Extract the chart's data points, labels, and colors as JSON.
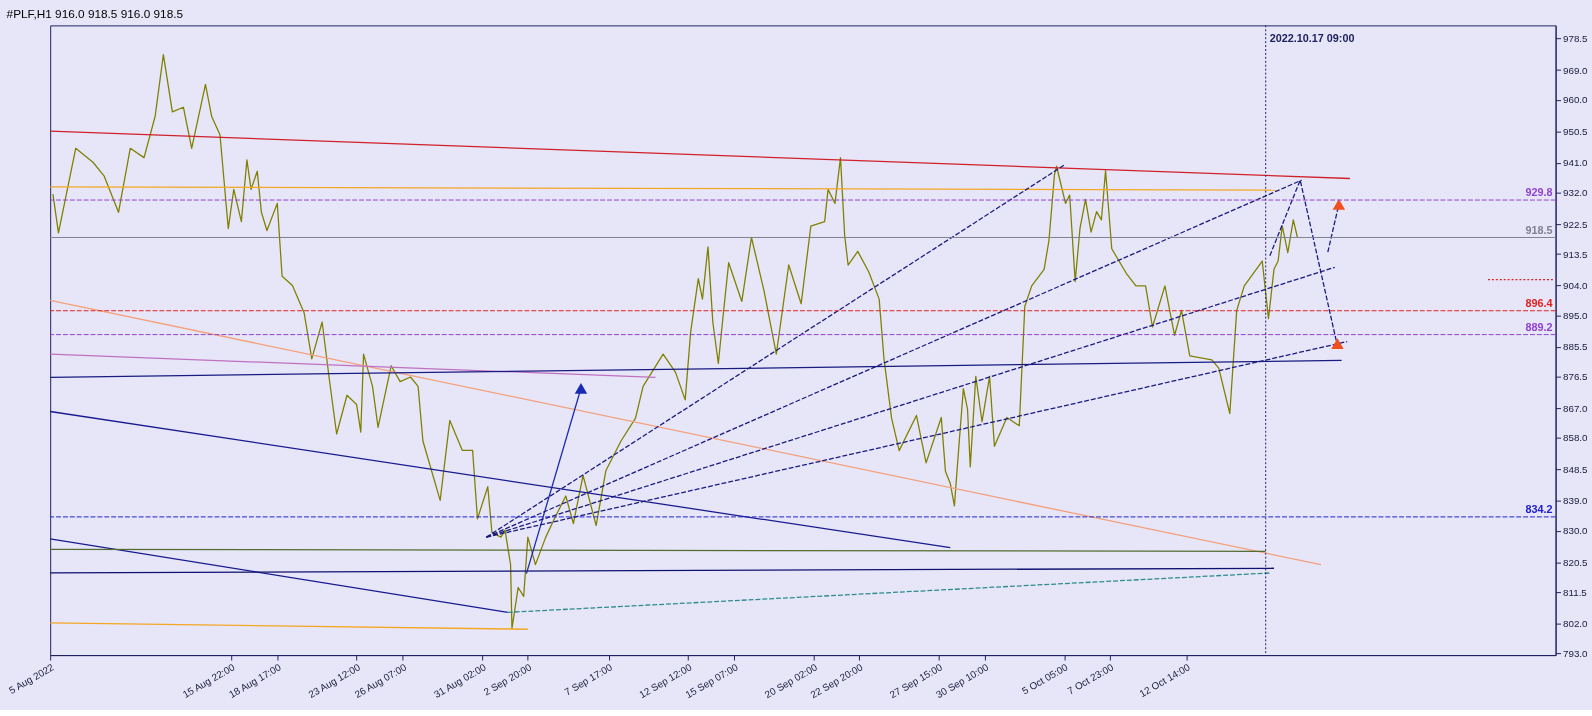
{
  "chart_data": {
    "type": "line",
    "title": "#PLF,H1  916.0 918.5 916.0 918.5",
    "xlim": [
      "2022-08-05T00:00",
      "2022-11-03T21:00"
    ],
    "ylim": [
      792.5,
      982.5
    ],
    "xticks": [
      {
        "value": "2022-08-05T00:00",
        "label": "5 Aug 2022"
      },
      {
        "value": "2022-08-15T22:00",
        "label": "15 Aug 22:00"
      },
      {
        "value": "2022-08-18T17:00",
        "label": "18 Aug 17:00"
      },
      {
        "value": "2022-08-23T12:00",
        "label": "23 Aug 12:00"
      },
      {
        "value": "2022-08-26T07:00",
        "label": "26 Aug 07:00"
      },
      {
        "value": "2022-08-31T02:00",
        "label": "31 Aug 02:00"
      },
      {
        "value": "2022-09-02T20:00",
        "label": "2 Sep 20:00"
      },
      {
        "value": "2022-09-07T17:00",
        "label": "7 Sep 17:00"
      },
      {
        "value": "2022-09-12T12:00",
        "label": "12 Sep 12:00"
      },
      {
        "value": "2022-09-15T07:00",
        "label": "15 Sep 07:00"
      },
      {
        "value": "2022-09-20T02:00",
        "label": "20 Sep 02:00"
      },
      {
        "value": "2022-09-22T20:00",
        "label": "22 Sep 20:00"
      },
      {
        "value": "2022-09-27T15:00",
        "label": "27 Sep 15:00"
      },
      {
        "value": "2022-09-30T10:00",
        "label": "30 Sep 10:00"
      },
      {
        "value": "2022-10-05T05:00",
        "label": "5 Oct 05:00"
      },
      {
        "value": "2022-10-07T23:00",
        "label": "7 Oct 23:00"
      },
      {
        "value": "2022-10-12T14:00",
        "label": "12 Oct 14:00"
      }
    ],
    "yticks": [
      {
        "value": 978.5,
        "label": "978.5"
      },
      {
        "value": 969,
        "label": "969.0"
      },
      {
        "value": 960,
        "label": "960.0"
      },
      {
        "value": 950.5,
        "label": "950.5"
      },
      {
        "value": 941,
        "label": "941.0"
      },
      {
        "value": 932,
        "label": "932.0"
      },
      {
        "value": 922.5,
        "label": "922.5"
      },
      {
        "value": 913.5,
        "label": "913.5"
      },
      {
        "value": 904,
        "label": "904.0"
      },
      {
        "value": 895,
        "label": "895.0"
      },
      {
        "value": 885.5,
        "label": "885.5"
      },
      {
        "value": 876.5,
        "label": "876.5"
      },
      {
        "value": 867,
        "label": "867.0"
      },
      {
        "value": 858,
        "label": "858.0"
      },
      {
        "value": 848.5,
        "label": "848.5"
      },
      {
        "value": 839,
        "label": "839.0"
      },
      {
        "value": 830,
        "label": "830.0"
      },
      {
        "value": 820.5,
        "label": "820.5"
      },
      {
        "value": 811.5,
        "label": "811.5"
      },
      {
        "value": 802,
        "label": "802.0"
      },
      {
        "value": 793,
        "label": "793.0"
      }
    ],
    "series": [
      {
        "color": "#808000",
        "x": [
          "2022-08-05T04:00",
          "2022-08-05T12:00",
          "2022-08-06T13:00",
          "2022-08-07T14:00",
          "2022-08-08T06:00",
          "2022-08-09T03:00",
          "2022-08-09T20:00",
          "2022-08-10T16:00",
          "2022-08-11T08:00",
          "2022-08-11T20:00",
          "2022-08-12T09:00",
          "2022-08-13T01:00",
          "2022-08-13T13:00",
          "2022-08-14T09:00",
          "2022-08-14T18:00",
          "2022-08-15T06:00",
          "2022-08-15T18:00",
          "2022-08-16T02:00",
          "2022-08-16T13:00",
          "2022-08-16T21:00",
          "2022-08-17T03:00",
          "2022-08-17T12:00",
          "2022-08-17T18:00",
          "2022-08-18T02:00",
          "2022-08-18T17:00",
          "2022-08-19T00:00",
          "2022-08-19T15:00",
          "2022-08-20T08:00",
          "2022-08-20T19:00",
          "2022-08-21T10:00",
          "2022-08-21T20:00",
          "2022-08-22T07:00",
          "2022-08-22T22:00",
          "2022-08-23T12:00",
          "2022-08-23T18:00",
          "2022-08-23T22:00",
          "2022-08-24T11:00",
          "2022-08-24T19:00",
          "2022-08-25T14:00",
          "2022-08-26T03:00",
          "2022-08-26T18:00",
          "2022-08-27T05:00",
          "2022-08-27T12:00",
          "2022-08-28T13:00",
          "2022-08-29T03:00",
          "2022-08-29T21:00",
          "2022-08-30T12:00",
          "2022-08-30T19:00",
          "2022-08-31T10:00",
          "2022-08-31T16:00",
          "2022-09-01T05:00",
          "2022-09-01T11:00",
          "2022-09-01T19:00",
          "2022-09-01T21:00",
          "2022-09-02T06:00",
          "2022-09-02T14:00",
          "2022-09-02T20:00",
          "2022-09-03T07:00",
          "2022-09-03T22:00",
          "2022-09-04T12:00",
          "2022-09-05T03:00",
          "2022-09-05T14:00",
          "2022-09-06T04:00",
          "2022-09-06T23:00",
          "2022-09-07T13:00",
          "2022-09-08T11:00",
          "2022-09-09T08:00",
          "2022-09-09T19:00",
          "2022-09-11T00:00",
          "2022-09-11T18:00",
          "2022-09-12T08:00",
          "2022-09-12T16:00",
          "2022-09-13T03:00",
          "2022-09-13T09:00",
          "2022-09-13T17:00",
          "2022-09-14T00:00",
          "2022-09-14T08:00",
          "2022-09-14T14:00",
          "2022-09-14T23:00",
          "2022-09-15T18:00",
          "2022-09-16T08:00",
          "2022-09-17T02:00",
          "2022-09-17T20:00",
          "2022-09-18T14:00",
          "2022-09-19T08:00",
          "2022-09-19T22:00",
          "2022-09-20T18:00",
          "2022-09-20T23:00",
          "2022-09-21T09:00",
          "2022-09-21T17:00",
          "2022-09-21T23:00",
          "2022-09-22T04:00",
          "2022-09-22T18:00",
          "2022-09-23T10:00",
          "2022-09-24T01:00",
          "2022-09-24T08:00",
          "2022-09-24T19:00",
          "2022-09-25T06:00",
          "2022-09-26T07:00",
          "2022-09-26T21:00",
          "2022-09-27T19:00",
          "2022-09-28T01:00",
          "2022-09-28T08:00",
          "2022-09-28T14:00",
          "2022-09-28T20:00",
          "2022-09-29T03:00",
          "2022-09-29T09:00",
          "2022-09-29T13:00",
          "2022-09-29T21:00",
          "2022-09-30T06:00",
          "2022-09-30T17:00",
          "2022-10-01T00:00",
          "2022-10-01T18:00",
          "2022-10-02T12:00",
          "2022-10-02T20:00",
          "2022-10-03T06:00",
          "2022-10-04T00:00",
          "2022-10-04T07:00",
          "2022-10-04T15:00",
          "2022-10-04T18:00",
          "2022-10-05T07:00",
          "2022-10-05T13:00",
          "2022-10-05T21:00",
          "2022-10-06T04:00",
          "2022-10-06T12:00",
          "2022-10-06T20:00",
          "2022-10-07T04:00",
          "2022-10-07T11:00",
          "2022-10-07T17:00",
          "2022-10-08T02:00",
          "2022-10-08T23:00",
          "2022-10-09T13:00",
          "2022-10-10T03:00",
          "2022-10-10T13:00",
          "2022-10-11T07:00",
          "2022-10-11T21:00",
          "2022-10-12T07:00",
          "2022-10-12T19:00",
          "2022-10-14T03:00",
          "2022-10-14T13:00",
          "2022-10-15T05:00",
          "2022-10-15T15:00",
          "2022-10-16T02:00",
          "2022-10-17T04:00",
          "2022-10-17T13:00",
          "2022-10-17T21:00",
          "2022-10-18T03:00",
          "2022-10-18T09:00",
          "2022-10-18T17:00",
          "2022-10-19T01:00",
          "2022-10-19T07:00"
        ],
        "values": [
          931.6,
          919.9,
          945.4,
          941.2,
          937.1,
          926.1,
          945.4,
          942.6,
          955.0,
          973.7,
          956.4,
          957.8,
          945.4,
          964.7,
          955.0,
          949.5,
          921.2,
          933.0,
          923.3,
          941.9,
          933.0,
          938.5,
          926.1,
          920.6,
          928.8,
          906.8,
          904.0,
          895.7,
          881.9,
          893.0,
          876.4,
          859.2,
          870.9,
          868.1,
          859.8,
          883.3,
          873.6,
          861.2,
          879.8,
          875.0,
          876.4,
          873.6,
          857.1,
          839.2,
          863.3,
          854.3,
          854.3,
          833.6,
          843.3,
          829.5,
          828.1,
          830.2,
          819.8,
          800.5,
          812.9,
          810.2,
          828.1,
          819.8,
          828.1,
          834.3,
          840.5,
          832.2,
          846.7,
          831.6,
          848.1,
          857.1,
          864.0,
          873.6,
          883.3,
          877.8,
          869.5,
          890.2,
          906.1,
          899.9,
          915.7,
          893.0,
          880.5,
          893.0,
          910.9,
          899.2,
          918.5,
          902.6,
          883.3,
          910.2,
          898.5,
          921.9,
          923.3,
          933.0,
          928.8,
          942.6,
          919.2,
          910.2,
          914.3,
          908.1,
          899.9,
          881.9,
          864.0,
          854.2,
          864.8,
          850.5,
          864.2,
          848.0,
          844.3,
          837.5,
          854.2,
          872.9,
          866.7,
          849.3,
          876.6,
          862.9,
          876.6,
          855.5,
          864.2,
          861.7,
          897.7,
          903.9,
          908.9,
          917.6,
          937.5,
          940.0,
          928.8,
          931.3,
          905.2,
          921.3,
          930.0,
          920.1,
          926.3,
          923.8,
          938.7,
          915.1,
          907.7,
          903.9,
          903.9,
          891.5,
          903.9,
          889.0,
          896.5,
          882.8,
          881.6,
          879.1,
          865.4,
          896.5,
          903.9,
          911.4,
          894.0,
          908.9,
          911.4,
          922.0,
          913.9,
          923.8,
          918.5
        ]
      },
      {
        "type": "line",
        "color": "#d0202a",
        "x": [
          "2022-08-05T00:00",
          "2022-10-22T11:00"
        ],
        "values": [
          950.6,
          936.3
        ]
      },
      {
        "type": "line",
        "color": "#f5a623",
        "x": [
          "2022-08-05T00:00",
          "2022-10-18T03:00"
        ],
        "values": [
          933.8,
          932.8
        ]
      },
      {
        "type": "line",
        "color": "#f4a07a",
        "x": [
          "2022-08-05T00:00",
          "2022-10-20T17:00"
        ],
        "values": [
          899.5,
          819.8
        ]
      },
      {
        "type": "line",
        "color": "#c070c0",
        "x": [
          "2022-08-05T00:00",
          "2022-09-10T13:00"
        ],
        "values": [
          883.3,
          876.3
        ]
      },
      {
        "type": "line",
        "color": "#1a1a80",
        "x": [
          "2022-08-05T00:00",
          "2022-10-21T23:00"
        ],
        "values": [
          876.3,
          881.4
        ]
      },
      {
        "type": "line",
        "color": "#1a1a90",
        "x": [
          "2022-08-05T00:00",
          "2022-09-28T08:00"
        ],
        "values": [
          866.0,
          824.9
        ]
      },
      {
        "type": "line",
        "color": "#1a1a90",
        "x": [
          "2022-08-05T00:00",
          "2022-09-01T15:00"
        ],
        "values": [
          827.6,
          805.4
        ]
      },
      {
        "type": "line",
        "color": "#556b2f",
        "x": [
          "2022-08-05T00:00",
          "2022-10-17T09:00"
        ],
        "values": [
          824.4,
          823.8
        ]
      },
      {
        "type": "line",
        "color": "#101070",
        "x": [
          "2022-08-05T00:00",
          "2022-10-17T21:00"
        ],
        "values": [
          817.3,
          818.7
        ]
      },
      {
        "type": "line",
        "color": "#2e8b8b",
        "line_style": "dashed",
        "x": [
          "2022-09-01T15:00",
          "2022-10-17T17:00"
        ],
        "values": [
          805.4,
          817.3
        ]
      },
      {
        "type": "line",
        "color": "#f5a623",
        "x": [
          "2022-08-05T00:00",
          "2022-09-02T20:00"
        ],
        "values": [
          802.2,
          800.3
        ]
      },
      {
        "type": "line",
        "color": "#1a2ab0",
        "x": [
          "2022-09-02T18:00",
          "2022-09-06T01:00"
        ],
        "values": [
          817.1,
          873.0
        ]
      },
      {
        "type": "scatter",
        "color": "#1a2ab0",
        "marker": "triangle",
        "x": [
          "2022-09-06T01:00"
        ],
        "values": [
          873.0
        ]
      },
      {
        "type": "line",
        "color": "#1a1a80",
        "line_style": "dashed",
        "x": [
          "2022-08-31T08:00",
          "2022-10-05T07:00"
        ],
        "values": [
          828.1,
          940.6
        ]
      },
      {
        "type": "line",
        "color": "#1a1a80",
        "line_style": "dashed",
        "x": [
          "2022-08-31T08:00",
          "2022-10-19T13:00"
        ],
        "values": [
          828.1,
          935.8
        ]
      },
      {
        "type": "line",
        "color": "#1a1a80",
        "line_style": "dashed",
        "x": [
          "2022-08-31T08:00",
          "2022-10-21T13:00"
        ],
        "values": [
          828.1,
          909.5
        ]
      },
      {
        "type": "line",
        "color": "#1a1a80",
        "line_style": "dashed",
        "x": [
          "2022-08-31T08:00",
          "2022-10-22T07:00"
        ],
        "values": [
          828.1,
          887.1
        ]
      },
      {
        "type": "line",
        "color": "#1a1a80",
        "line_style": "dashed",
        "x": [
          "2022-10-17T15:00",
          "2022-10-19T11:00",
          "2022-10-21T17:00"
        ],
        "values": [
          913.0,
          935.8,
          885.7
        ]
      },
      {
        "type": "line",
        "color": "#1a1a80",
        "line_style": "dashed",
        "x": [
          "2022-10-21T03:00",
          "2022-10-21T19:00"
        ],
        "values": [
          914.1,
          928.5
        ]
      },
      {
        "type": "scatter",
        "color": "#f05020",
        "marker": "triangle",
        "x": [
          "2022-10-21T19:00",
          "2022-10-21T17:00"
        ],
        "values": [
          928.5,
          886.5
        ]
      },
      {
        "type": "line",
        "color": "#e02020",
        "line_style": "dotted",
        "x": [
          "2022-10-30T19:00",
          "2022-11-03T17:00"
        ],
        "values": [
          905.8,
          905.8
        ]
      }
    ],
    "ref_lines": [
      {
        "axis": "y",
        "value": 929.8,
        "label": "929.8",
        "color": "#9040d0",
        "line_style": "dashed"
      },
      {
        "axis": "y",
        "value": 918.5,
        "label": "918.5",
        "color": "#808090",
        "line_style": "solid"
      },
      {
        "axis": "y",
        "value": 896.4,
        "label": "896.4",
        "color": "#e02020",
        "line_style": "dashed"
      },
      {
        "axis": "y",
        "value": 889.2,
        "label": "889.2",
        "color": "#9040d0",
        "line_style": "dashed"
      },
      {
        "axis": "y",
        "value": 834.2,
        "label": "834.2",
        "color": "#2020d0",
        "line_style": "dashed"
      },
      {
        "axis": "x",
        "value": "2022-10-17T09:00",
        "label": "2022.10.17 09:00",
        "color": "#202060",
        "line_style": "dotted"
      }
    ]
  }
}
